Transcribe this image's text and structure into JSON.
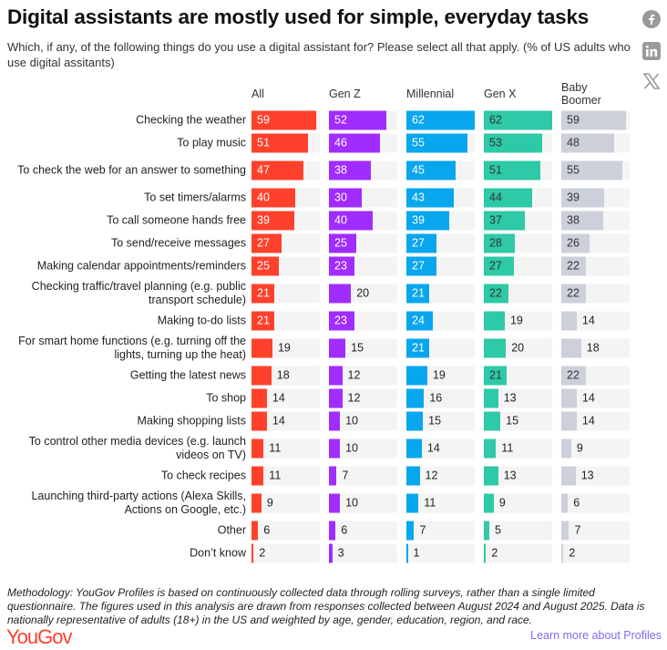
{
  "title": "Digital assistants are mostly used for simple, everyday tasks",
  "subtitle": "Which, if any, of the following things do you use a digital assistant for? Please select all that apply. (% of US adults who use digital assitants)",
  "social": [
    {
      "name": "facebook-icon"
    },
    {
      "name": "linkedin-icon"
    },
    {
      "name": "x-icon"
    }
  ],
  "colors": {
    "All": "#ff412c",
    "Gen Z": "#a02cff",
    "Millennial": "#08a6ed",
    "Gen X": "#2ec9a7",
    "Baby Boomer": "#ccd0da",
    "track": "#f4f4f4"
  },
  "chart_data": {
    "type": "bar",
    "title": "Digital assistants are mostly used for simple, everyday tasks",
    "xlabel": "",
    "ylabel": "% of US adults who use digital assistants",
    "xlim": [
      0,
      62
    ],
    "series_names": [
      "All",
      "Gen Z",
      "Millennial",
      "Gen X",
      "Baby Boomer"
    ],
    "categories": [
      "Checking the weather",
      "To play music",
      "To check the web for an answer to something",
      "To set timers/alarms",
      "To call someone hands free",
      "To send/receive messages",
      "Making calendar appointments/reminders",
      "Checking traffic/travel planning (e.g. public transport schedule)",
      "Making to-do lists",
      "For smart home functions (e.g. turning off the lights, turning up the heat)",
      "Getting the latest news",
      "To shop",
      "Making shopping lists",
      "To control other media devices (e.g. launch videos on TV)",
      "To check recipes",
      "Launching third-party actions (Alexa Skills, Actions on Google, etc.)",
      "Other",
      "Don’t know"
    ],
    "series": [
      {
        "name": "All",
        "values": [
          59,
          51,
          47,
          40,
          39,
          27,
          25,
          21,
          21,
          19,
          18,
          14,
          14,
          11,
          11,
          9,
          6,
          2
        ]
      },
      {
        "name": "Gen Z",
        "values": [
          52,
          46,
          38,
          30,
          40,
          25,
          23,
          20,
          23,
          15,
          12,
          12,
          10,
          10,
          7,
          10,
          6,
          3
        ]
      },
      {
        "name": "Millennial",
        "values": [
          62,
          55,
          45,
          43,
          39,
          27,
          27,
          21,
          24,
          21,
          19,
          16,
          15,
          14,
          12,
          11,
          7,
          1
        ]
      },
      {
        "name": "Gen X",
        "values": [
          62,
          53,
          51,
          44,
          37,
          28,
          27,
          22,
          19,
          20,
          21,
          13,
          15,
          11,
          13,
          9,
          5,
          2
        ]
      },
      {
        "name": "Baby Boomer",
        "values": [
          59,
          48,
          55,
          39,
          38,
          26,
          22,
          22,
          14,
          18,
          22,
          14,
          14,
          9,
          13,
          6,
          7,
          2
        ]
      }
    ]
  },
  "footer": {
    "methodology": "Methodology: YouGov Profiles is based on continuously collected data through rolling surveys, rather than a single limited questionnaire. The figures used in this analysis are drawn from responses collected between August 2024 and August 2025. Data is nationally representative of adults (18+) in the US and weighted by age, gender, education, region, and race.",
    "logo": "YouGov",
    "link": "Learn more about Profiles"
  }
}
